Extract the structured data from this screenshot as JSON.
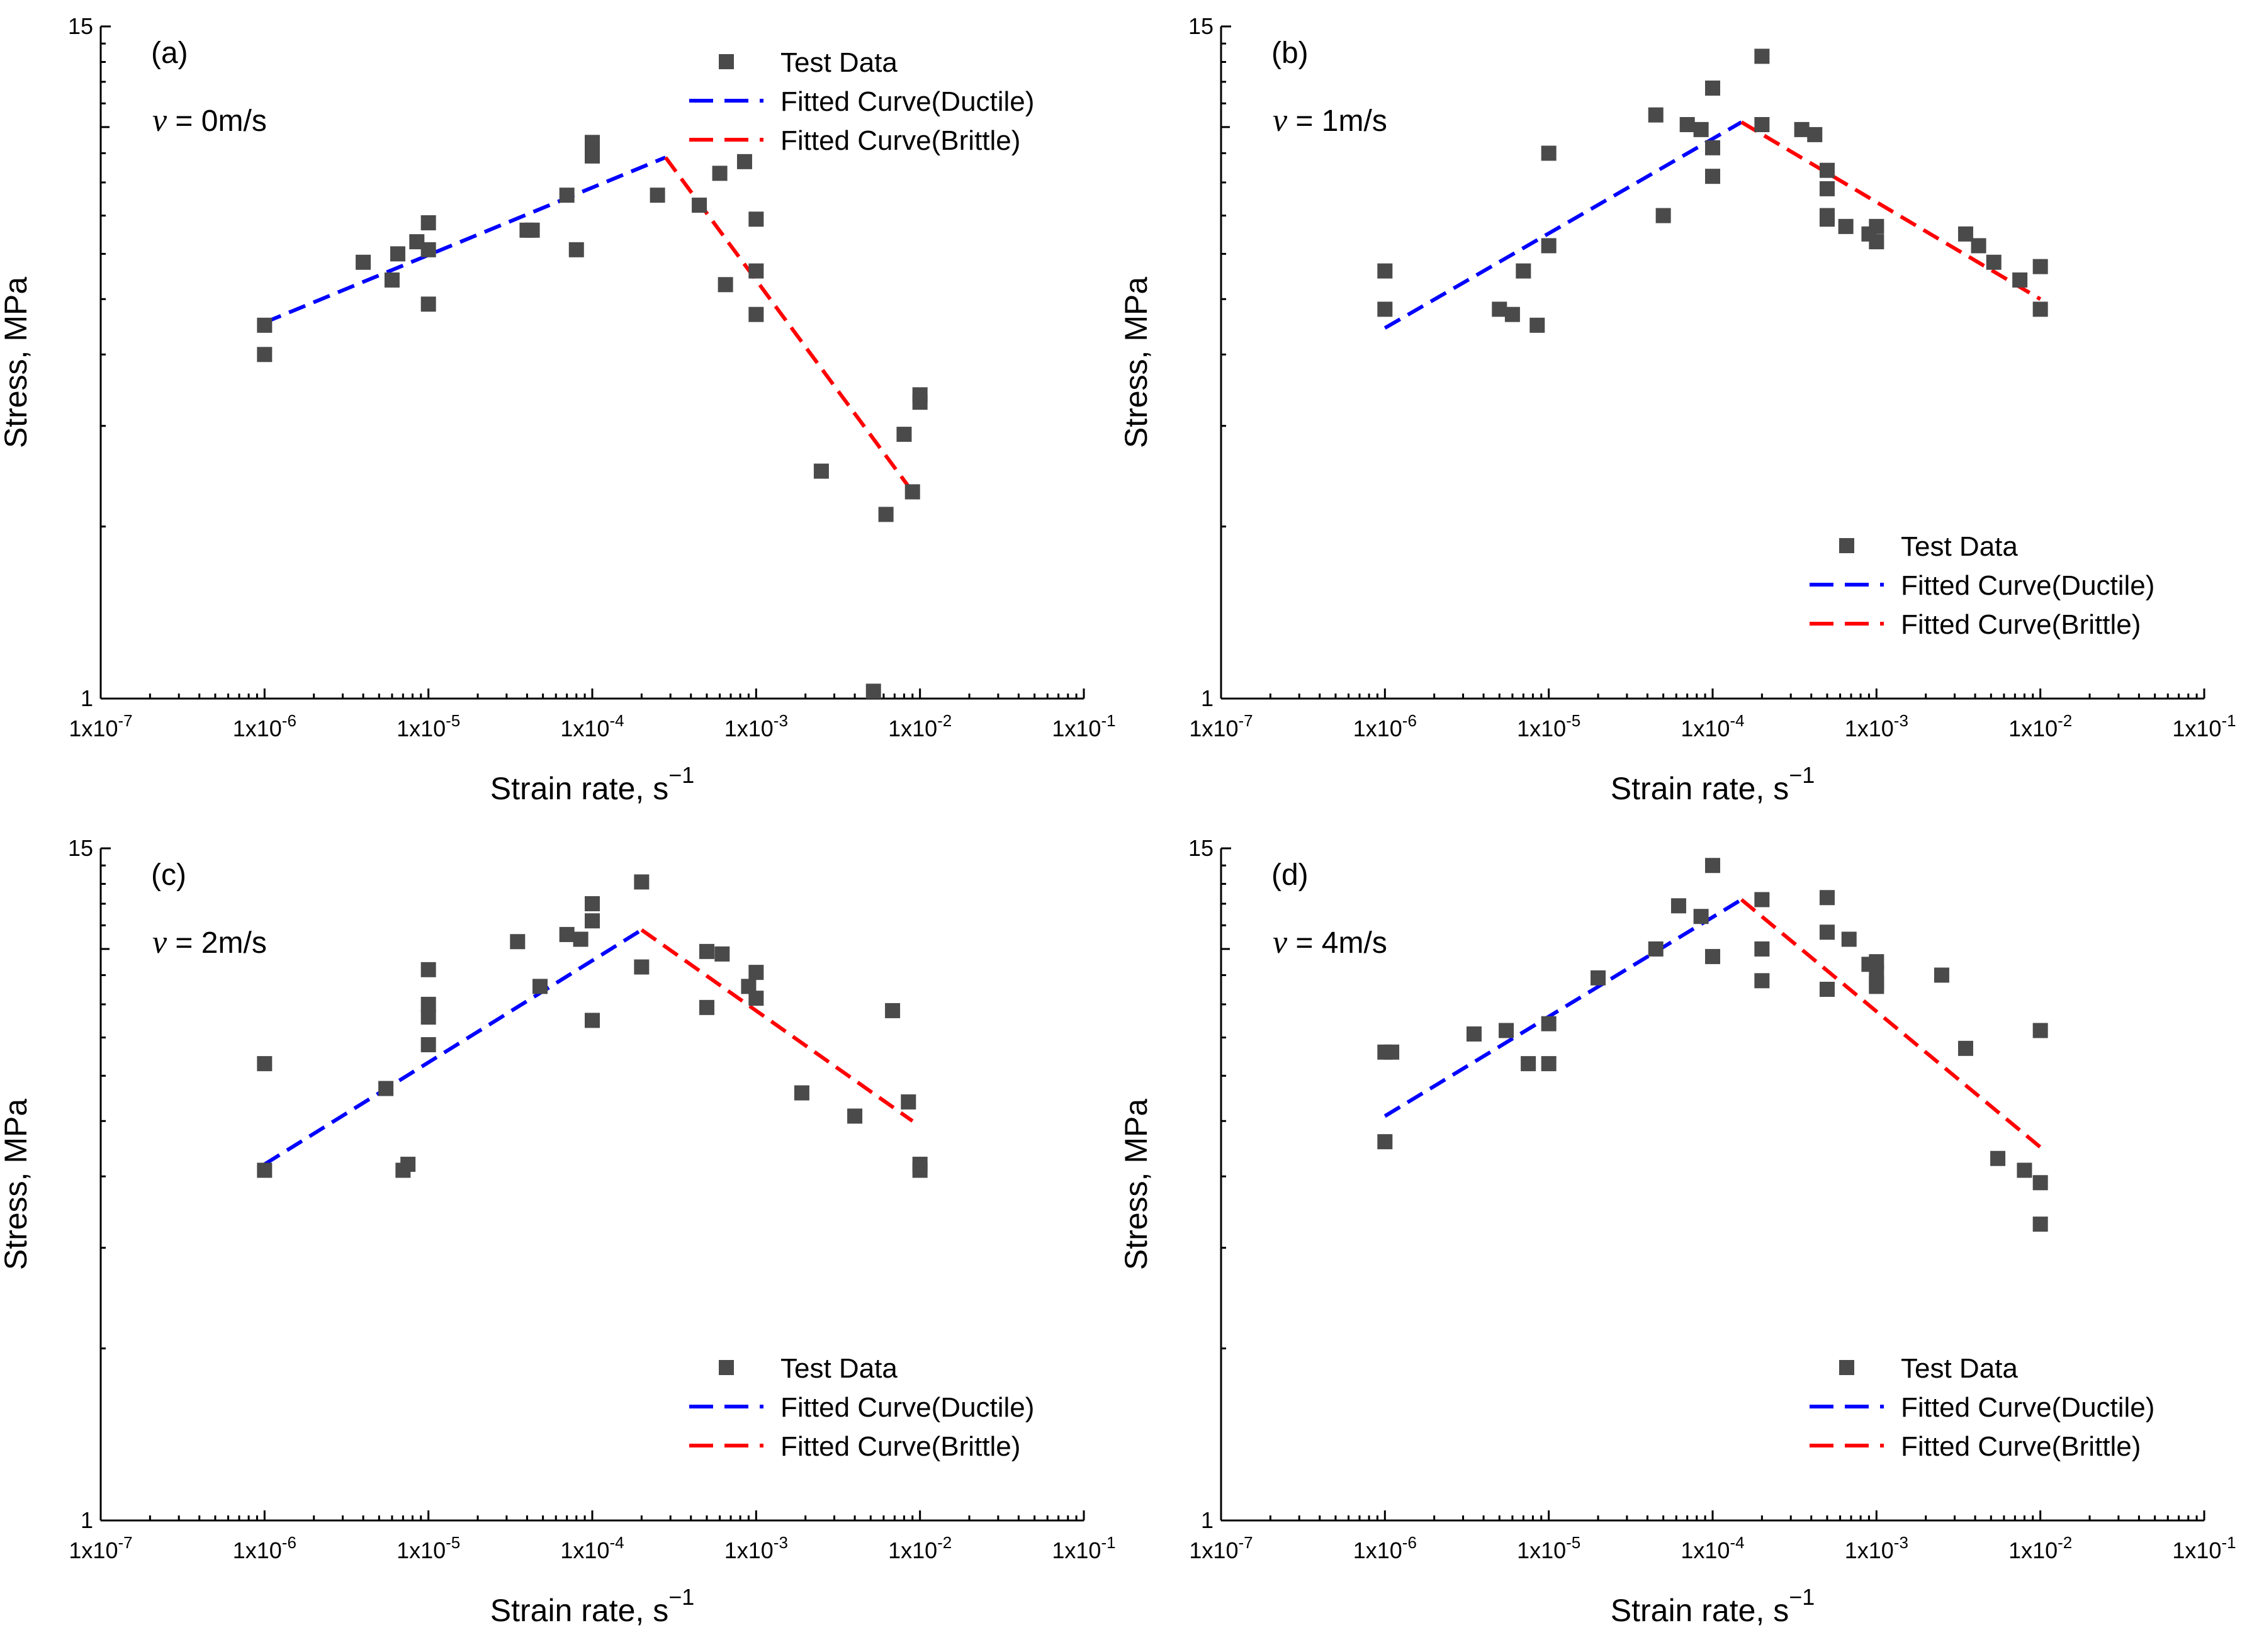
{
  "colors": {
    "marker": "#4a4a4a",
    "ductile": "#0000ff",
    "brittle": "#ff0000",
    "axis": "#000000"
  },
  "legend": {
    "test_data": "Test Data",
    "ductile": "Fitted Curve(Ductile)",
    "brittle": "Fitted Curve(Brittle)"
  },
  "chart_data": [
    {
      "type": "scatter",
      "panel": "(a)",
      "velocity_symbol": "ν",
      "velocity_text": " = 0m/s",
      "xlabel": "Strain rate, s",
      "xlabel_sup": "−1",
      "ylabel": "Stress, MPa",
      "xscale": "log",
      "yscale": "log",
      "xlim": [
        1e-07,
        0.1
      ],
      "ylim": [
        1,
        15
      ],
      "xticklabels": [
        "1x10",
        "-7",
        "1x10",
        "-6",
        "1x10",
        "-5",
        "1x10",
        "-4",
        "1x10",
        "-3",
        "1x10",
        "-2",
        "1x10",
        "-1"
      ],
      "ytick_top": "15",
      "ytick_bottom": "1",
      "legend_position": "top-right",
      "series": [
        {
          "name": "Test Data",
          "kind": "points",
          "x": [
            1e-06,
            1e-06,
            4e-06,
            6e-06,
            6.5e-06,
            8.5e-06,
            1e-05,
            1e-05,
            1e-05,
            4e-05,
            4.3e-05,
            7e-05,
            8e-05,
            0.0001,
            0.0001,
            0.0001,
            0.00025,
            0.00045,
            0.0006,
            0.00065,
            0.00085,
            0.001,
            0.001,
            0.001,
            0.0025,
            0.0052,
            0.0062,
            0.008,
            0.009,
            0.01,
            0.01
          ],
          "y": [
            4.5,
            4.0,
            5.8,
            5.4,
            6.0,
            6.3,
            6.8,
            6.1,
            4.9,
            6.6,
            6.6,
            7.6,
            6.1,
            9.4,
            9.0,
            8.9,
            7.6,
            7.3,
            8.3,
            5.3,
            8.7,
            6.9,
            5.6,
            4.7,
            2.5,
            1.03,
            2.1,
            2.9,
            2.3,
            3.3,
            3.4
          ]
        },
        {
          "name": "Fitted Curve(Ductile)",
          "kind": "line",
          "x": [
            1e-06,
            0.00028
          ],
          "y": [
            4.55,
            8.85
          ]
        },
        {
          "name": "Fitted Curve(Brittle)",
          "kind": "line",
          "x": [
            0.00028,
            0.009
          ],
          "y": [
            8.85,
            2.3
          ]
        }
      ]
    },
    {
      "type": "scatter",
      "panel": "(b)",
      "velocity_symbol": "ν",
      "velocity_text": " = 1m/s",
      "xlabel": "Strain rate, s",
      "xlabel_sup": "−1",
      "ylabel": "Stress, MPa",
      "xscale": "log",
      "yscale": "log",
      "xlim": [
        1e-07,
        0.1
      ],
      "ylim": [
        1,
        15
      ],
      "xticklabels": [
        "1x10",
        "-7",
        "1x10",
        "-6",
        "1x10",
        "-5",
        "1x10",
        "-4",
        "1x10",
        "-3",
        "1x10",
        "-2",
        "1x10",
        "-1"
      ],
      "ytick_top": "15",
      "ytick_bottom": "1",
      "legend_position": "bottom-right",
      "series": [
        {
          "name": "Test Data",
          "kind": "points",
          "x": [
            1e-06,
            1e-06,
            5e-06,
            6e-06,
            7e-06,
            8.5e-06,
            1e-05,
            1e-05,
            4.5e-05,
            5e-05,
            7e-05,
            8.5e-05,
            0.0001,
            0.0001,
            0.0001,
            0.0002,
            0.0002,
            0.00035,
            0.00042,
            0.0005,
            0.0005,
            0.0005,
            0.0005,
            0.00065,
            0.0009,
            0.001,
            0.001,
            0.0035,
            0.0042,
            0.0052,
            0.0075,
            0.01,
            0.01
          ],
          "y": [
            5.6,
            4.8,
            4.8,
            4.7,
            5.6,
            4.5,
            6.2,
            9.0,
            10.5,
            7.0,
            10.1,
            9.9,
            11.7,
            9.2,
            8.2,
            13.3,
            10.1,
            9.9,
            9.7,
            8.4,
            7.8,
            7.0,
            6.9,
            6.7,
            6.5,
            6.3,
            6.7,
            6.5,
            6.2,
            5.8,
            5.4,
            5.7,
            4.8
          ]
        },
        {
          "name": "Fitted Curve(Ductile)",
          "kind": "line",
          "x": [
            1e-06,
            0.00015
          ],
          "y": [
            4.45,
            10.2
          ]
        },
        {
          "name": "Fitted Curve(Brittle)",
          "kind": "line",
          "x": [
            0.00015,
            0.01
          ],
          "y": [
            10.2,
            5.0
          ]
        }
      ]
    },
    {
      "type": "scatter",
      "panel": "(c)",
      "velocity_symbol": "ν",
      "velocity_text": " = 2m/s",
      "xlabel": "Strain rate, s",
      "xlabel_sup": "−1",
      "ylabel": "Stress, MPa",
      "xscale": "log",
      "yscale": "log",
      "xlim": [
        1e-07,
        0.1
      ],
      "ylim": [
        1,
        15
      ],
      "xticklabels": [
        "1x10",
        "-7",
        "1x10",
        "-6",
        "1x10",
        "-5",
        "1x10",
        "-4",
        "1x10",
        "-3",
        "1x10",
        "-2",
        "1x10",
        "-1"
      ],
      "ytick_top": "15",
      "ytick_bottom": "1",
      "legend_position": "bottom-right",
      "series": [
        {
          "name": "Test Data",
          "kind": "points",
          "x": [
            1e-06,
            1e-06,
            5.5e-06,
            7e-06,
            7.5e-06,
            1e-05,
            1e-05,
            1e-05,
            1e-05,
            3.5e-05,
            4.8e-05,
            7e-05,
            8.5e-05,
            0.0001,
            0.0001,
            0.0001,
            0.0002,
            0.0002,
            0.0005,
            0.0005,
            0.00062,
            0.0009,
            0.001,
            0.001,
            0.0019,
            0.004,
            0.0068,
            0.0085,
            0.01,
            0.01
          ],
          "y": [
            6.3,
            4.1,
            5.7,
            4.1,
            4.2,
            6.8,
            7.6,
            8.0,
            9.2,
            10.3,
            8.6,
            10.6,
            10.4,
            11.2,
            12.0,
            7.5,
            13.1,
            9.3,
            9.9,
            7.9,
            9.8,
            8.6,
            9.1,
            8.2,
            5.6,
            5.1,
            7.8,
            5.4,
            4.2,
            4.1
          ]
        },
        {
          "name": "Fitted Curve(Ductile)",
          "kind": "line",
          "x": [
            1e-06,
            0.0002
          ],
          "y": [
            4.2,
            10.8
          ]
        },
        {
          "name": "Fitted Curve(Brittle)",
          "kind": "line",
          "x": [
            0.0002,
            0.009
          ],
          "y": [
            10.8,
            5.0
          ]
        }
      ]
    },
    {
      "type": "scatter",
      "panel": "(d)",
      "velocity_symbol": "ν",
      "velocity_text": " = 4m/s",
      "xlabel": "Strain rate, s",
      "xlabel_sup": "−1",
      "ylabel": "Stress, MPa",
      "xscale": "log",
      "yscale": "log",
      "xlim": [
        1e-07,
        0.1
      ],
      "ylim": [
        1,
        15
      ],
      "xticklabels": [
        "1x10",
        "-7",
        "1x10",
        "-6",
        "1x10",
        "-5",
        "1x10",
        "-4",
        "1x10",
        "-3",
        "1x10",
        "-2",
        "1x10",
        "-1"
      ],
      "ytick_top": "15",
      "ytick_bottom": "1",
      "legend_position": "bottom-right",
      "series": [
        {
          "name": "Test Data",
          "kind": "points",
          "x": [
            1e-06,
            1e-06,
            1.1e-06,
            3.5e-06,
            5.5e-06,
            7.5e-06,
            1e-05,
            1e-05,
            2e-05,
            4.5e-05,
            6.2e-05,
            8.5e-05,
            0.0001,
            0.0001,
            0.0002,
            0.0002,
            0.0002,
            0.0005,
            0.0005,
            0.0005,
            0.00068,
            0.0009,
            0.001,
            0.001,
            0.001,
            0.001,
            0.0025,
            0.0035,
            0.0055,
            0.008,
            0.01,
            0.01,
            0.01
          ],
          "y": [
            6.6,
            4.6,
            6.6,
            7.1,
            7.2,
            6.3,
            6.3,
            7.4,
            8.9,
            10.0,
            11.9,
            11.4,
            14.0,
            9.7,
            12.2,
            10.0,
            8.8,
            12.3,
            10.7,
            8.5,
            10.4,
            9.4,
            9.5,
            9.1,
            8.6,
            8.7,
            9.0,
            6.7,
            4.3,
            4.1,
            3.9,
            3.3,
            7.2
          ]
        },
        {
          "name": "Fitted Curve(Ductile)",
          "kind": "line",
          "x": [
            1e-06,
            0.00015
          ],
          "y": [
            5.1,
            12.2
          ]
        },
        {
          "name": "Fitted Curve(Brittle)",
          "kind": "line",
          "x": [
            0.00015,
            0.01
          ],
          "y": [
            12.2,
            4.5
          ]
        }
      ]
    }
  ]
}
